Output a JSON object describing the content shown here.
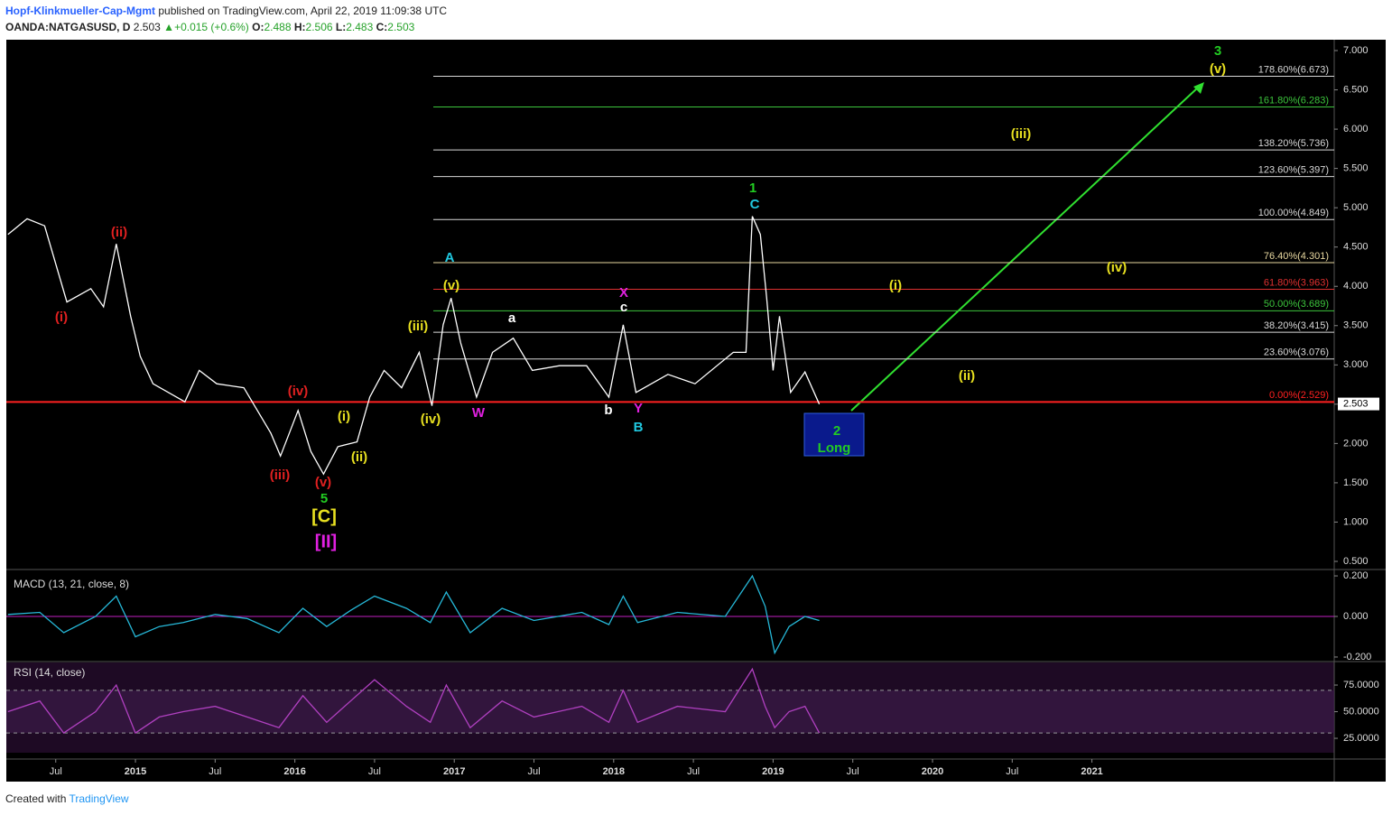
{
  "header": {
    "author": "Hopf-Klinkmueller-Cap-Mgmt",
    "published": "published on TradingView.com, April 22, 2019 11:09:38 UTC",
    "symbol": "OANDA:NATGASUSD, D",
    "last": 2.503,
    "change": "+0.015 (+0.6%)",
    "ohlc": [
      {
        "label": "O:",
        "value": 2.488
      },
      {
        "label": "H:",
        "value": 2.506
      },
      {
        "label": "L:",
        "value": 2.483
      },
      {
        "label": "C:",
        "value": 2.503
      }
    ]
  },
  "chart_data": [
    {
      "type": "line",
      "color": "#ffffff",
      "x": [
        2014.2,
        2014.32,
        2014.43,
        2014.57,
        2014.72,
        2014.8,
        2014.88,
        2014.97,
        2015.03,
        2015.11,
        2015.31,
        2015.4,
        2015.51,
        2015.68,
        2015.85,
        2015.91,
        2016.02,
        2016.1,
        2016.18,
        2016.27,
        2016.39,
        2016.47,
        2016.56,
        2016.67,
        2016.78,
        2016.86,
        2016.93,
        2016.98,
        2017.04,
        2017.14,
        2017.24,
        2017.37,
        2017.49,
        2017.66,
        2017.83,
        2017.97,
        2018.06,
        2018.14,
        2018.34,
        2018.51,
        2018.75,
        2018.83,
        2018.87,
        2018.92,
        2018.96,
        2019.0,
        2019.04,
        2019.11,
        2019.2,
        2019.29
      ],
      "values": [
        4.66,
        4.86,
        4.77,
        3.8,
        3.97,
        3.74,
        4.54,
        3.62,
        3.11,
        2.76,
        2.53,
        2.93,
        2.76,
        2.71,
        2.13,
        1.84,
        2.42,
        1.9,
        1.61,
        1.96,
        2.02,
        2.59,
        2.93,
        2.71,
        3.16,
        2.48,
        3.51,
        3.85,
        3.28,
        2.59,
        3.16,
        3.34,
        2.93,
        2.99,
        2.99,
        2.59,
        3.51,
        2.65,
        2.88,
        2.76,
        3.16,
        3.16,
        4.89,
        4.66,
        3.85,
        2.93,
        3.62,
        2.65,
        2.91,
        2.5
      ],
      "xlim": [
        2014.19,
        2022.52
      ],
      "xticks": [
        {
          "value": 2014.5,
          "label": "Jul"
        },
        2015,
        {
          "value": 2015.5,
          "label": "Jul"
        },
        2016,
        {
          "value": 2016.5,
          "label": "Jul"
        },
        2017,
        {
          "value": 2017.5,
          "label": "Jul"
        },
        2018,
        {
          "value": 2018.5,
          "label": "Jul"
        },
        2019,
        {
          "value": 2019.5,
          "label": "Jul"
        },
        2020,
        {
          "value": 2020.5,
          "label": "Jul"
        },
        2021
      ],
      "ylim": [
        0.408,
        7.138
      ],
      "yticks": [
        {
          "value": 0.5,
          "label": "0.500"
        },
        {
          "value": 1,
          "label": "1.000"
        },
        {
          "value": 1.5,
          "label": "1.500"
        },
        {
          "value": 2,
          "label": "2.000"
        },
        {
          "value": 2.5,
          "label": "2.500"
        },
        {
          "value": 3,
          "label": "3.000"
        },
        {
          "value": 3.5,
          "label": "3.500"
        },
        {
          "value": 4,
          "label": "4.000"
        },
        {
          "value": 4.5,
          "label": "4.500"
        },
        {
          "value": 5,
          "label": "5.000"
        },
        {
          "value": 5.5,
          "label": "5.500"
        },
        {
          "value": 6,
          "label": "6.000"
        },
        {
          "value": 6.5,
          "label": "6.500"
        },
        {
          "value": 7,
          "label": "7.000"
        }
      ],
      "last_price": 2.503,
      "fib_levels": [
        {
          "value": 6.673,
          "label": "178.60%(6.673)",
          "color": "#d8d8d8"
        },
        {
          "value": 6.283,
          "label": "161.80%(6.283)",
          "color": "#3cc43c"
        },
        {
          "value": 5.736,
          "label": "138.20%(5.736)",
          "color": "#d8d8d8"
        },
        {
          "value": 5.397,
          "label": "123.60%(5.397)",
          "color": "#d8d8d8"
        },
        {
          "value": 4.849,
          "label": "100.00%(4.849)",
          "color": "#d8d8d8"
        },
        {
          "value": 4.301,
          "label": "76.40%(4.301)",
          "color": "#e8d8a0"
        },
        {
          "value": 3.963,
          "label": "61.80%(3.963)",
          "color": "#e03030"
        },
        {
          "value": 3.689,
          "label": "50.00%(3.689)",
          "color": "#3cc43c"
        },
        {
          "value": 3.415,
          "label": "38.20%(3.415)",
          "color": "#d8d8d8"
        },
        {
          "value": 3.076,
          "label": "23.60%(3.076)",
          "color": "#d8d8d8"
        },
        {
          "value": 2.529,
          "label": "0.00%(2.529)",
          "color": "#ff2020"
        }
      ],
      "annotations": [
        {
          "text": "(i)",
          "color": "#e02020"
        },
        {
          "text": "(ii)",
          "color": "#e02020"
        },
        {
          "text": "(iii)",
          "color": "#e02020"
        },
        {
          "text": "(iv)",
          "color": "#e02020"
        },
        {
          "text": "(v)",
          "color": "#e02020"
        },
        {
          "text": "5",
          "color": "#22cc22"
        },
        {
          "text": "[C]",
          "color": "#e8e020"
        },
        {
          "text": "[II]",
          "color": "#e020e0"
        },
        {
          "text": "(i)",
          "color": "#e8e020"
        },
        {
          "text": "(ii)",
          "color": "#e8e020"
        },
        {
          "text": "(iii)",
          "color": "#e8e020"
        },
        {
          "text": "(iv)",
          "color": "#e8e020"
        },
        {
          "text": "(v)",
          "color": "#e8e020"
        },
        {
          "text": "A",
          "color": "#20c8e0"
        },
        {
          "text": "W",
          "color": "#e020e0"
        },
        {
          "text": "a",
          "color": "#ffffff"
        },
        {
          "text": "X",
          "color": "#e020e0"
        },
        {
          "text": "c",
          "color": "#ffffff"
        },
        {
          "text": "b",
          "color": "#ffffff"
        },
        {
          "text": "Y",
          "color": "#e020e0"
        },
        {
          "text": "B",
          "color": "#20c8e0"
        },
        {
          "text": "1",
          "color": "#22cc22"
        },
        {
          "text": "C",
          "color": "#20c8e0"
        },
        {
          "text": "(i)",
          "color": "#e8e020"
        },
        {
          "text": "(ii)",
          "color": "#e8e020"
        },
        {
          "text": "(iii)",
          "color": "#e8e020"
        },
        {
          "text": "(iv)",
          "color": "#e8e020"
        },
        {
          "text": "(v)",
          "color": "#e8e020"
        },
        {
          "text": "3",
          "color": "#22cc22"
        },
        {
          "text": "2",
          "color": "#22cc22"
        },
        {
          "text": "Long",
          "color": "#22cc22"
        }
      ]
    },
    {
      "type": "line",
      "title": "MACD (13, 21, close, 8)",
      "color": "#26b8d8",
      "x": [
        2014.2,
        2014.4,
        2014.55,
        2014.75,
        2014.88,
        2015.0,
        2015.15,
        2015.3,
        2015.5,
        2015.7,
        2015.9,
        2016.05,
        2016.2,
        2016.35,
        2016.5,
        2016.7,
        2016.85,
        2016.95,
        2017.1,
        2017.3,
        2017.5,
        2017.8,
        2017.97,
        2018.06,
        2018.15,
        2018.4,
        2018.7,
        2018.87,
        2018.95,
        2019.01,
        2019.1,
        2019.2,
        2019.29
      ],
      "values": [
        0.01,
        0.02,
        -0.08,
        0.0,
        0.1,
        -0.1,
        -0.05,
        -0.03,
        0.01,
        -0.01,
        -0.08,
        0.04,
        -0.05,
        0.03,
        0.1,
        0.04,
        -0.03,
        0.12,
        -0.08,
        0.04,
        -0.02,
        0.02,
        -0.04,
        0.1,
        -0.03,
        0.02,
        0.0,
        0.2,
        0.05,
        -0.18,
        -0.05,
        0.0,
        -0.02
      ],
      "ylim": [
        -0.218,
        0.227
      ],
      "yticks": [
        {
          "value": -0.2,
          "label": "-0.200"
        },
        {
          "value": 0,
          "label": "0.000"
        },
        {
          "value": 0.2,
          "label": "0.200"
        }
      ],
      "zero_line": "#c020c0"
    },
    {
      "type": "line",
      "title": "RSI (14, close)",
      "color": "#b040c0",
      "x": [
        2014.2,
        2014.4,
        2014.55,
        2014.75,
        2014.88,
        2015.0,
        2015.15,
        2015.3,
        2015.5,
        2015.7,
        2015.9,
        2016.05,
        2016.2,
        2016.35,
        2016.5,
        2016.7,
        2016.85,
        2016.95,
        2017.1,
        2017.3,
        2017.5,
        2017.8,
        2017.97,
        2018.06,
        2018.15,
        2018.4,
        2018.7,
        2018.87,
        2018.95,
        2019.01,
        2019.1,
        2019.2,
        2019.29
      ],
      "values": [
        50,
        60,
        30,
        50,
        75,
        30,
        45,
        50,
        55,
        45,
        35,
        65,
        40,
        60,
        80,
        55,
        40,
        75,
        35,
        60,
        45,
        55,
        40,
        70,
        40,
        55,
        50,
        90,
        55,
        35,
        50,
        55,
        30
      ],
      "ylim": [
        6.4,
        96.2
      ],
      "yticks": [
        {
          "value": 25,
          "label": "25.0000"
        },
        {
          "value": 50,
          "label": "50.0000"
        },
        {
          "value": 75,
          "label": "75.0000"
        }
      ],
      "band": [
        30,
        70
      ]
    }
  ],
  "footer": {
    "created": "Created with",
    "brand": "TradingView"
  }
}
